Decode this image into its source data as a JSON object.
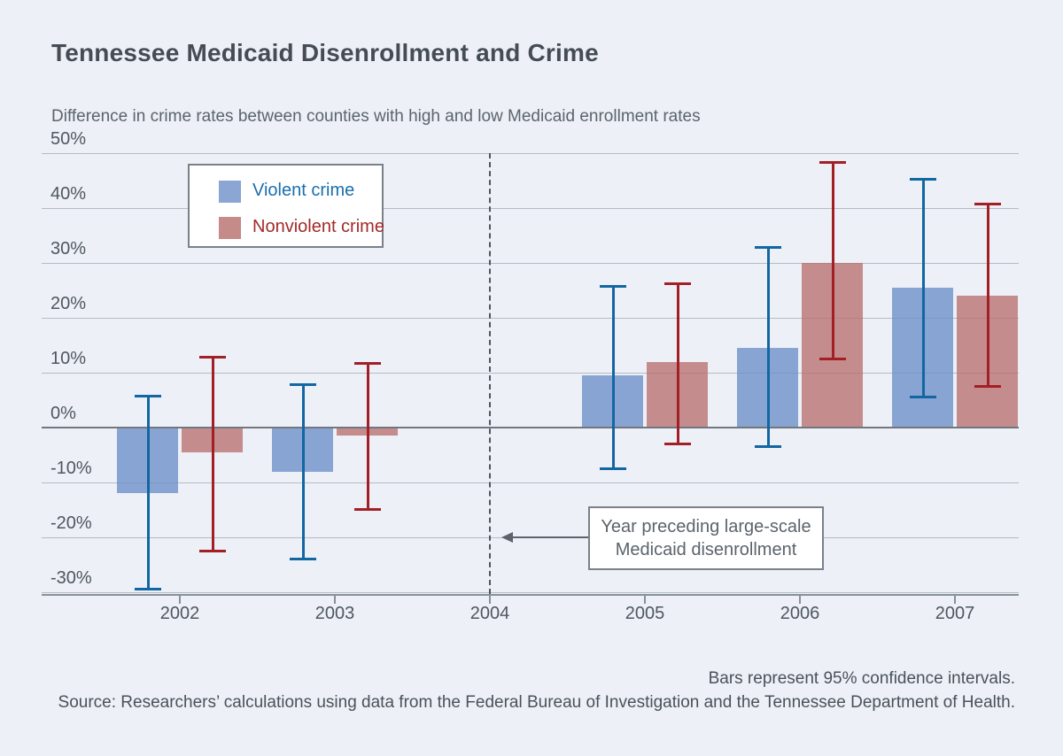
{
  "title": "Tennessee Medicaid Disenrollment and Crime",
  "subtitle": "Difference in crime rates between counties with high and low Medicaid enrollment rates",
  "legend": {
    "items": [
      {
        "label": "Violent crime",
        "swatch_color": "#8ba6d3",
        "text_color": "#1a6fad"
      },
      {
        "label": "Nonviolent crime",
        "swatch_color": "#c48b89",
        "text_color": "#a32a28"
      }
    ]
  },
  "annotation": {
    "line1": "Year preceding large-scale",
    "line2": "Medicaid disenrollment"
  },
  "footer": {
    "note": "Bars represent 95% confidence intervals.",
    "source": "Source: Researchers’ calculations using data from the Federal Bureau of Investigation and the Tennessee Department of Health."
  },
  "chart_data": {
    "type": "bar",
    "title": "Tennessee Medicaid Disenrollment and Crime",
    "subtitle": "Difference in crime rates between counties with high and low Medicaid enrollment rates",
    "unit": "percent",
    "categories": [
      "2002",
      "2003",
      "2004",
      "2005",
      "2006",
      "2007"
    ],
    "y_tick_labels": [
      "50%",
      "40%",
      "30%",
      "20%",
      "10%",
      "0%",
      "-10%",
      "-20%",
      "-30%"
    ],
    "y_tick_values": [
      50,
      40,
      30,
      20,
      10,
      0,
      -10,
      -20,
      -30
    ],
    "ylim": [
      -30,
      50
    ],
    "grid": true,
    "legend_position": "top-left",
    "vline": {
      "category": "2004",
      "style": "dashed",
      "note": "Year preceding large-scale Medicaid disenrollment"
    },
    "error_bars": "95% confidence intervals",
    "series": [
      {
        "name": "Violent crime",
        "bar_color_rgba": "rgba(110,145,200,0.8)",
        "ci_color": "#1266a2",
        "points": [
          {
            "category": "2002",
            "value": -12,
            "ci_high": 6,
            "ci_low": -29.5
          },
          {
            "category": "2003",
            "value": -8,
            "ci_high": 8,
            "ci_low": -24
          },
          {
            "category": "2005",
            "value": 9.5,
            "ci_high": 26,
            "ci_low": -7.5
          },
          {
            "category": "2006",
            "value": 14.5,
            "ci_high": 33,
            "ci_low": -3.5
          },
          {
            "category": "2007",
            "value": 25.5,
            "ci_high": 45.5,
            "ci_low": 5.5
          }
        ]
      },
      {
        "name": "Nonviolent crime",
        "bar_color_rgba": "rgba(185,115,112,0.8)",
        "ci_color": "#a31f26",
        "points": [
          {
            "category": "2002",
            "value": -4.5,
            "ci_high": 13,
            "ci_low": -22.5
          },
          {
            "category": "2003",
            "value": -1.5,
            "ci_high": 12,
            "ci_low": -15
          },
          {
            "category": "2005",
            "value": 12,
            "ci_high": 26.5,
            "ci_low": -3
          },
          {
            "category": "2006",
            "value": 30,
            "ci_high": 48.5,
            "ci_low": 12.5
          },
          {
            "category": "2007",
            "value": 24,
            "ci_high": 41,
            "ci_low": 7.5
          }
        ]
      }
    ]
  }
}
